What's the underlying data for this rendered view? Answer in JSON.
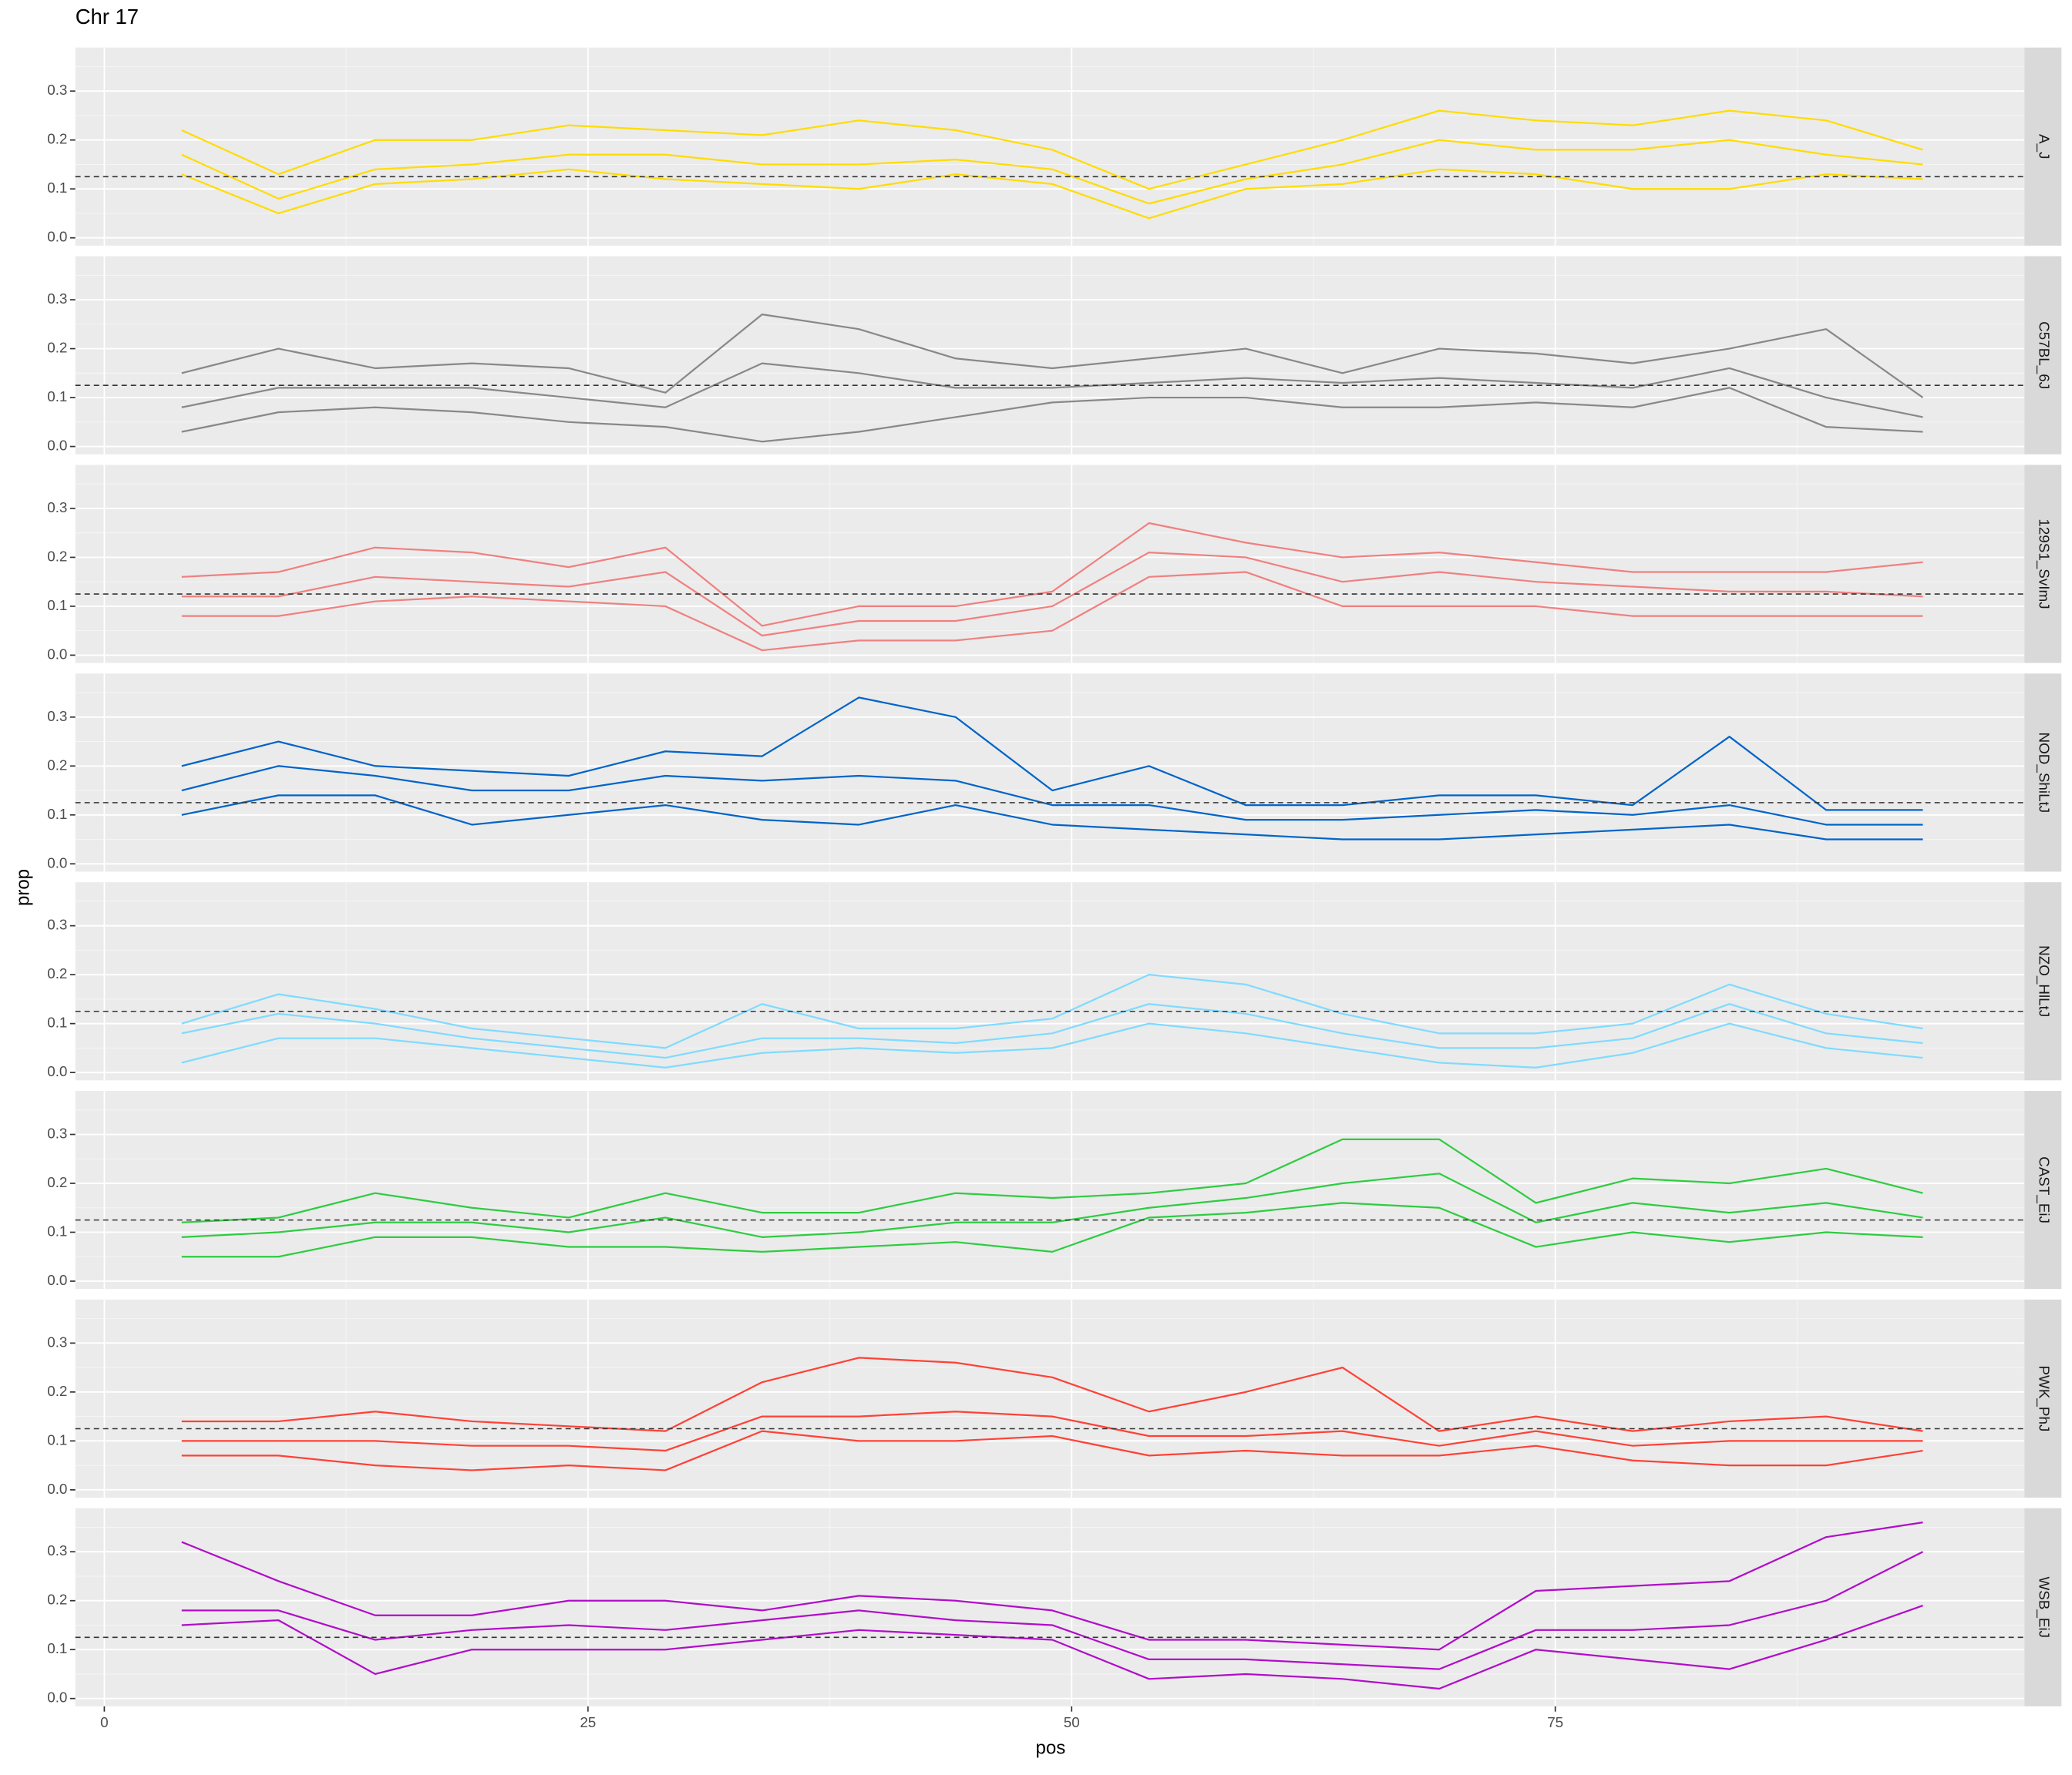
{
  "chart_data": {
    "type": "line",
    "title": "Chr 17",
    "x_label": "pos",
    "y_label": "prop",
    "xlim": [
      -1.5,
      99.25
    ],
    "xticks": [
      0,
      25,
      50,
      75
    ],
    "ylim": [
      -0.016,
      0.389
    ],
    "yticks": [
      {
        "value": 0,
        "label": "0.0"
      },
      0.1,
      0.2,
      0.3
    ],
    "hline": 0.125,
    "grid": true,
    "x": [
      4,
      9,
      14,
      19,
      24,
      29,
      34,
      39,
      44,
      49,
      54,
      59,
      64,
      69,
      74,
      79,
      84,
      89,
      94
    ],
    "panels": [
      {
        "label": "A_J",
        "color": "#FFDC00",
        "series": [
          [
            0.22,
            0.13,
            0.2,
            0.2,
            0.23,
            0.22,
            0.21,
            0.24,
            0.22,
            0.18,
            0.1,
            0.15,
            0.2,
            0.26,
            0.24,
            0.23,
            0.26,
            0.24,
            0.18
          ],
          [
            0.17,
            0.08,
            0.14,
            0.15,
            0.17,
            0.17,
            0.15,
            0.15,
            0.16,
            0.14,
            0.07,
            0.12,
            0.15,
            0.2,
            0.18,
            0.18,
            0.2,
            0.17,
            0.15
          ],
          [
            0.13,
            0.05,
            0.11,
            0.12,
            0.14,
            0.12,
            0.11,
            0.1,
            0.13,
            0.11,
            0.04,
            0.1,
            0.11,
            0.14,
            0.13,
            0.1,
            0.1,
            0.13,
            0.12
          ]
        ]
      },
      {
        "label": "C57BL_6J",
        "color": "#888888",
        "series": [
          [
            0.15,
            0.2,
            0.16,
            0.17,
            0.16,
            0.11,
            0.27,
            0.24,
            0.18,
            0.16,
            0.18,
            0.2,
            0.15,
            0.2,
            0.19,
            0.17,
            0.2,
            0.24,
            0.1
          ],
          [
            0.08,
            0.12,
            0.12,
            0.12,
            0.1,
            0.08,
            0.17,
            0.15,
            0.12,
            0.12,
            0.13,
            0.14,
            0.13,
            0.14,
            0.13,
            0.12,
            0.16,
            0.1,
            0.06
          ],
          [
            0.03,
            0.07,
            0.08,
            0.07,
            0.05,
            0.04,
            0.01,
            0.03,
            0.06,
            0.09,
            0.1,
            0.1,
            0.08,
            0.08,
            0.09,
            0.08,
            0.12,
            0.04,
            0.03
          ]
        ]
      },
      {
        "label": "129S1_SvImJ",
        "color": "#F08080",
        "series": [
          [
            0.16,
            0.17,
            0.22,
            0.21,
            0.18,
            0.22,
            0.06,
            0.1,
            0.1,
            0.13,
            0.27,
            0.23,
            0.2,
            0.21,
            0.19,
            0.17,
            0.17,
            0.17,
            0.19
          ],
          [
            0.12,
            0.12,
            0.16,
            0.15,
            0.14,
            0.17,
            0.04,
            0.07,
            0.07,
            0.1,
            0.21,
            0.2,
            0.15,
            0.17,
            0.15,
            0.14,
            0.13,
            0.13,
            0.12
          ],
          [
            0.08,
            0.08,
            0.11,
            0.12,
            0.11,
            0.1,
            0.01,
            0.03,
            0.03,
            0.05,
            0.16,
            0.17,
            0.1,
            0.1,
            0.1,
            0.08,
            0.08,
            0.08,
            0.08
          ]
        ]
      },
      {
        "label": "NOD_ShiLtJ",
        "color": "#0064C9",
        "series": [
          [
            0.2,
            0.25,
            0.2,
            0.19,
            0.18,
            0.23,
            0.22,
            0.34,
            0.3,
            0.15,
            0.2,
            0.12,
            0.12,
            0.14,
            0.14,
            0.12,
            0.26,
            0.11,
            0.11
          ],
          [
            0.15,
            0.2,
            0.18,
            0.15,
            0.15,
            0.18,
            0.17,
            0.18,
            0.17,
            0.12,
            0.12,
            0.09,
            0.09,
            0.1,
            0.11,
            0.1,
            0.12,
            0.08,
            0.08
          ],
          [
            0.1,
            0.14,
            0.14,
            0.08,
            0.1,
            0.12,
            0.09,
            0.08,
            0.12,
            0.08,
            0.07,
            0.06,
            0.05,
            0.05,
            0.06,
            0.07,
            0.08,
            0.05,
            0.05
          ]
        ]
      },
      {
        "label": "NZO_HlLtJ",
        "color": "#7FDBFF",
        "series": [
          [
            0.1,
            0.16,
            0.13,
            0.09,
            0.07,
            0.05,
            0.14,
            0.09,
            0.09,
            0.11,
            0.2,
            0.18,
            0.12,
            0.08,
            0.08,
            0.1,
            0.18,
            0.12,
            0.09
          ],
          [
            0.08,
            0.12,
            0.1,
            0.07,
            0.05,
            0.03,
            0.07,
            0.07,
            0.06,
            0.08,
            0.14,
            0.12,
            0.08,
            0.05,
            0.05,
            0.07,
            0.14,
            0.08,
            0.06
          ],
          [
            0.02,
            0.07,
            0.07,
            0.05,
            0.03,
            0.01,
            0.04,
            0.05,
            0.04,
            0.05,
            0.1,
            0.08,
            0.05,
            0.02,
            0.01,
            0.04,
            0.1,
            0.05,
            0.03
          ]
        ]
      },
      {
        "label": "CAST_EiJ",
        "color": "#2ECC40",
        "series": [
          [
            0.12,
            0.13,
            0.18,
            0.15,
            0.13,
            0.18,
            0.14,
            0.14,
            0.18,
            0.17,
            0.18,
            0.2,
            0.29,
            0.29,
            0.16,
            0.21,
            0.2,
            0.23,
            0.18
          ],
          [
            0.09,
            0.1,
            0.12,
            0.12,
            0.1,
            0.13,
            0.09,
            0.1,
            0.12,
            0.12,
            0.15,
            0.17,
            0.2,
            0.22,
            0.12,
            0.16,
            0.14,
            0.16,
            0.13
          ],
          [
            0.05,
            0.05,
            0.09,
            0.09,
            0.07,
            0.07,
            0.06,
            0.07,
            0.08,
            0.06,
            0.13,
            0.14,
            0.16,
            0.15,
            0.07,
            0.1,
            0.08,
            0.1,
            0.09
          ]
        ]
      },
      {
        "label": "PWK_PhJ",
        "color": "#FF4136",
        "series": [
          [
            0.14,
            0.14,
            0.16,
            0.14,
            0.13,
            0.12,
            0.22,
            0.27,
            0.26,
            0.23,
            0.16,
            0.2,
            0.25,
            0.12,
            0.15,
            0.12,
            0.14,
            0.15,
            0.12
          ],
          [
            0.1,
            0.1,
            0.1,
            0.09,
            0.09,
            0.08,
            0.15,
            0.15,
            0.16,
            0.15,
            0.11,
            0.11,
            0.12,
            0.09,
            0.12,
            0.09,
            0.1,
            0.1,
            0.1
          ],
          [
            0.07,
            0.07,
            0.05,
            0.04,
            0.05,
            0.04,
            0.12,
            0.1,
            0.1,
            0.11,
            0.07,
            0.08,
            0.07,
            0.07,
            0.09,
            0.06,
            0.05,
            0.05,
            0.08
          ]
        ]
      },
      {
        "label": "WSB_EiJ",
        "color": "#B10DC9",
        "series": [
          [
            0.32,
            0.24,
            0.17,
            0.17,
            0.2,
            0.2,
            0.18,
            0.21,
            0.2,
            0.18,
            0.12,
            0.12,
            0.11,
            0.1,
            0.22,
            0.23,
            0.24,
            0.33,
            0.36
          ],
          [
            0.18,
            0.18,
            0.12,
            0.14,
            0.15,
            0.14,
            0.16,
            0.18,
            0.16,
            0.15,
            0.08,
            0.08,
            0.07,
            0.06,
            0.14,
            0.14,
            0.15,
            0.2,
            0.3
          ],
          [
            0.15,
            0.16,
            0.05,
            0.1,
            0.1,
            0.1,
            0.12,
            0.14,
            0.13,
            0.12,
            0.04,
            0.05,
            0.04,
            0.02,
            0.1,
            0.08,
            0.06,
            0.12,
            0.19
          ]
        ]
      }
    ]
  }
}
